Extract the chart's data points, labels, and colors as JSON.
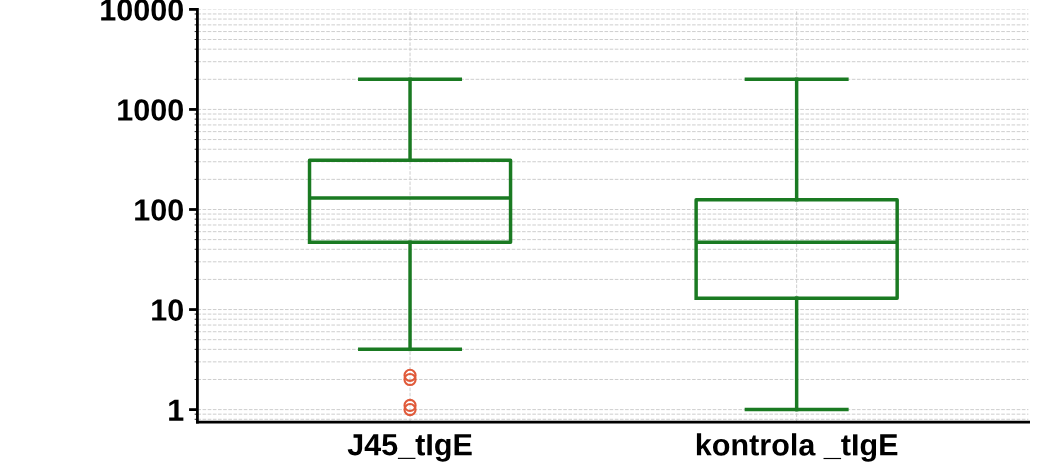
{
  "chart_data": {
    "type": "box",
    "categories": [
      "J45_tIgE",
      "kontrola _tIgE"
    ],
    "boxes": [
      {
        "low": 4,
        "q1": 47,
        "median": 130,
        "q3": 310,
        "high": 2000,
        "outliers": [
          2.2,
          2.0,
          1.1,
          1.0
        ]
      },
      {
        "low": 1,
        "q1": 13,
        "median": 47,
        "q3": 125,
        "high": 2000
      }
    ],
    "color": "#1a7a22",
    "log": "y",
    "ylim": [
      0.75,
      10000
    ],
    "yticks": [
      1,
      10,
      100,
      1000,
      10000
    ],
    "grid": true
  }
}
